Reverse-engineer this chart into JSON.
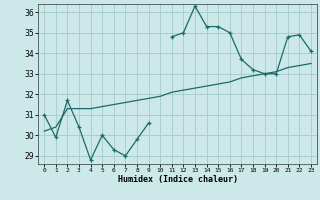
{
  "title": "",
  "xlabel": "Humidex (Indice chaleur)",
  "ylabel": "",
  "background_color": "#cce8e8",
  "grid_color": "#aacece",
  "line_color": "#1a6b6b",
  "x_values": [
    0,
    1,
    2,
    3,
    4,
    5,
    6,
    7,
    8,
    9,
    10,
    11,
    12,
    13,
    14,
    15,
    16,
    17,
    18,
    19,
    20,
    21,
    22,
    23
  ],
  "line1_y": [
    31.0,
    29.9,
    31.7,
    30.4,
    28.8,
    30.0,
    29.3,
    29.0,
    29.8,
    30.6,
    null,
    34.8,
    35.0,
    36.3,
    35.3,
    35.3,
    35.0,
    33.7,
    33.2,
    33.0,
    33.0,
    34.8,
    34.9,
    34.1
  ],
  "line2_y": [
    30.2,
    30.4,
    31.3,
    31.3,
    31.3,
    31.4,
    31.5,
    31.6,
    31.7,
    31.8,
    31.9,
    32.1,
    32.2,
    32.3,
    32.4,
    32.5,
    32.6,
    32.8,
    32.9,
    33.0,
    33.1,
    33.3,
    33.4,
    33.5
  ],
  "ylim": [
    28.6,
    36.4
  ],
  "xlim": [
    -0.5,
    23.5
  ],
  "yticks": [
    29,
    30,
    31,
    32,
    33,
    34,
    35,
    36
  ],
  "xticks": [
    0,
    1,
    2,
    3,
    4,
    5,
    6,
    7,
    8,
    9,
    10,
    11,
    12,
    13,
    14,
    15,
    16,
    17,
    18,
    19,
    20,
    21,
    22,
    23
  ]
}
